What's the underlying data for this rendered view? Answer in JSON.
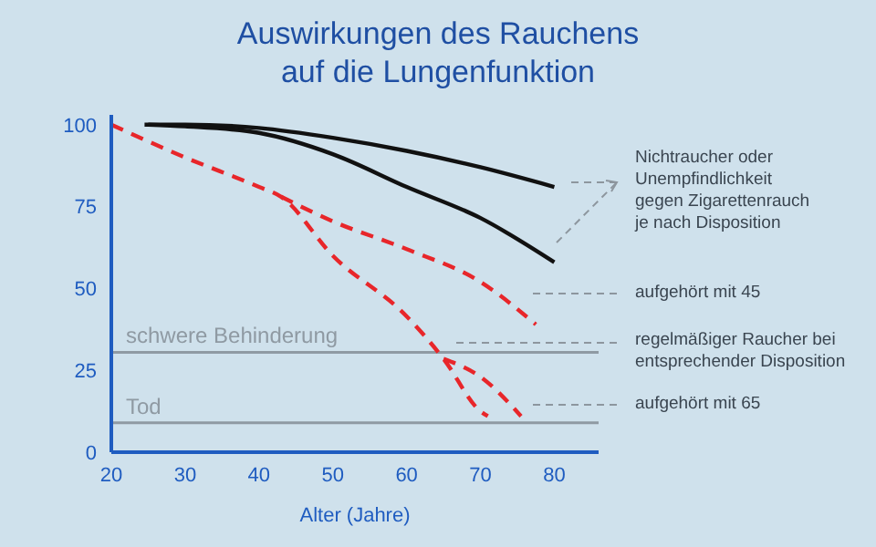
{
  "chart_data": {
    "type": "line",
    "title": "Auswirkungen des Rauchens auf die Lungenfunktion",
    "xlabel": "Alter (Jahre)",
    "xlim": [
      20,
      86
    ],
    "xticks": [
      20,
      30,
      40,
      50,
      60,
      70,
      80
    ],
    "ylim": [
      0,
      103
    ],
    "yticks": [
      0,
      25,
      50,
      75,
      100
    ],
    "marker": "none",
    "series": [
      {
        "color": "#111111",
        "line_style": "solid",
        "x": [
          24.5,
          30,
          40,
          50,
          60,
          70,
          80
        ],
        "values": [
          100,
          100,
          99,
          96,
          92,
          87,
          81
        ]
      },
      {
        "color": "#111111",
        "line_style": "solid",
        "x": [
          25,
          30,
          40,
          50,
          60,
          70,
          80
        ],
        "values": [
          100,
          99.5,
          97.5,
          91,
          81,
          71.5,
          58
        ]
      },
      {
        "color": "#e8262a",
        "line_style": "dashed",
        "x": [
          20,
          30,
          40,
          43,
          50,
          60,
          65,
          70,
          71
        ],
        "values": [
          100,
          90,
          81,
          78,
          60,
          41.5,
          28.5,
          12.5,
          11
        ]
      },
      {
        "color": "#e8262a",
        "line_style": "dashed",
        "x": [
          43,
          50,
          60,
          70,
          77.5
        ],
        "values": [
          78,
          70.5,
          62,
          52,
          39
        ]
      },
      {
        "color": "#e8262a",
        "line_style": "dashed",
        "x": [
          65,
          70,
          75.5
        ],
        "values": [
          28.5,
          23,
          11
        ]
      }
    ],
    "ref_lines": [
      {
        "axis": "y",
        "value": 30.5,
        "label": "schwere Behinderung",
        "color": "#8f9aa3"
      },
      {
        "axis": "y",
        "value": 9,
        "label": "Tod",
        "color": "#8f9aa3"
      }
    ],
    "annotations": [
      "Nichtraucher oder Unempfindlichkeit gegen Zigarettenrauch je nach Disposition",
      "aufgehört mit 45",
      "regelmäßiger Raucher bei entsprechender Disposition",
      "aufgehört mit 65"
    ]
  }
}
